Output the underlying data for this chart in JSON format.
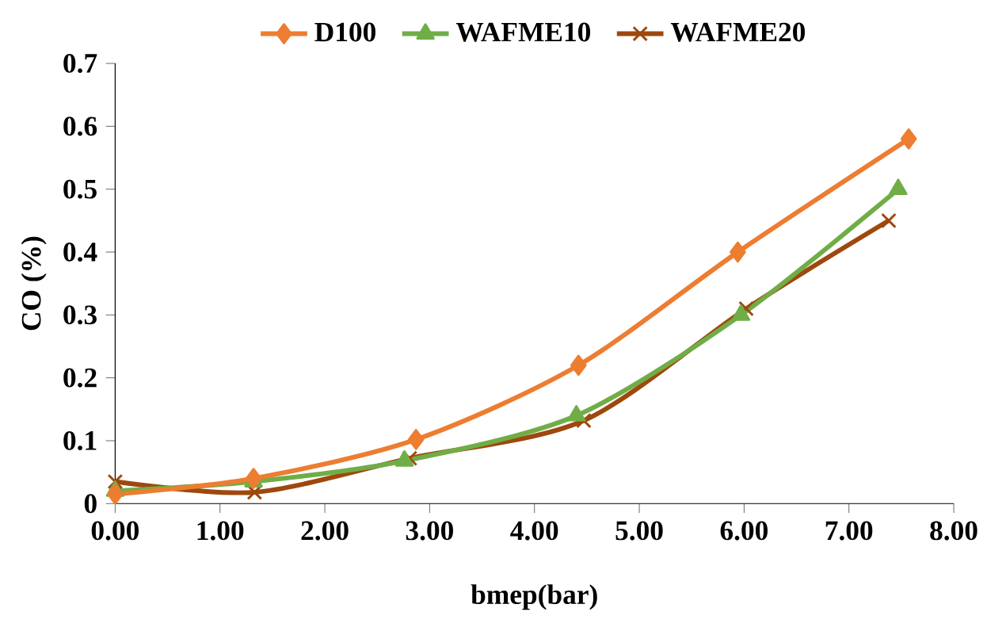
{
  "chart_data": {
    "type": "line",
    "xlabel": "bmep(bar)",
    "ylabel": "CO (%)",
    "xlim": [
      0,
      8
    ],
    "ylim": [
      0,
      0.7
    ],
    "xticks": [
      {
        "value": 0,
        "label": "0.00"
      },
      {
        "value": 1,
        "label": "1.00"
      },
      {
        "value": 2,
        "label": "2.00"
      },
      {
        "value": 3,
        "label": "3.00"
      },
      {
        "value": 4,
        "label": "4.00"
      },
      {
        "value": 5,
        "label": "5.00"
      },
      {
        "value": 6,
        "label": "6.00"
      },
      {
        "value": 7,
        "label": "7.00"
      },
      {
        "value": 8,
        "label": "8.00"
      }
    ],
    "yticks": [
      0,
      0.1,
      0.2,
      0.3,
      0.4,
      0.5,
      0.6,
      0.7
    ],
    "legend": "top",
    "grid": false,
    "series": [
      {
        "name": "D100",
        "color": "#ed7d31",
        "marker": "diamond",
        "x": [
          0,
          1.32,
          2.87,
          4.42,
          5.94,
          7.57
        ],
        "values": [
          0.015,
          0.04,
          0.102,
          0.22,
          0.4,
          0.58
        ]
      },
      {
        "name": "WAFME10",
        "color": "#70ad47",
        "marker": "triangle",
        "x": [
          0,
          1.32,
          2.76,
          4.4,
          5.97,
          7.47
        ],
        "values": [
          0.02,
          0.035,
          0.068,
          0.14,
          0.3,
          0.5
        ]
      },
      {
        "name": "WAFME20",
        "color": "#9e480e",
        "marker": "cross",
        "x": [
          0,
          1.33,
          2.81,
          4.47,
          6.02,
          7.38
        ],
        "values": [
          0.035,
          0.018,
          0.072,
          0.132,
          0.31,
          0.45
        ]
      }
    ]
  }
}
